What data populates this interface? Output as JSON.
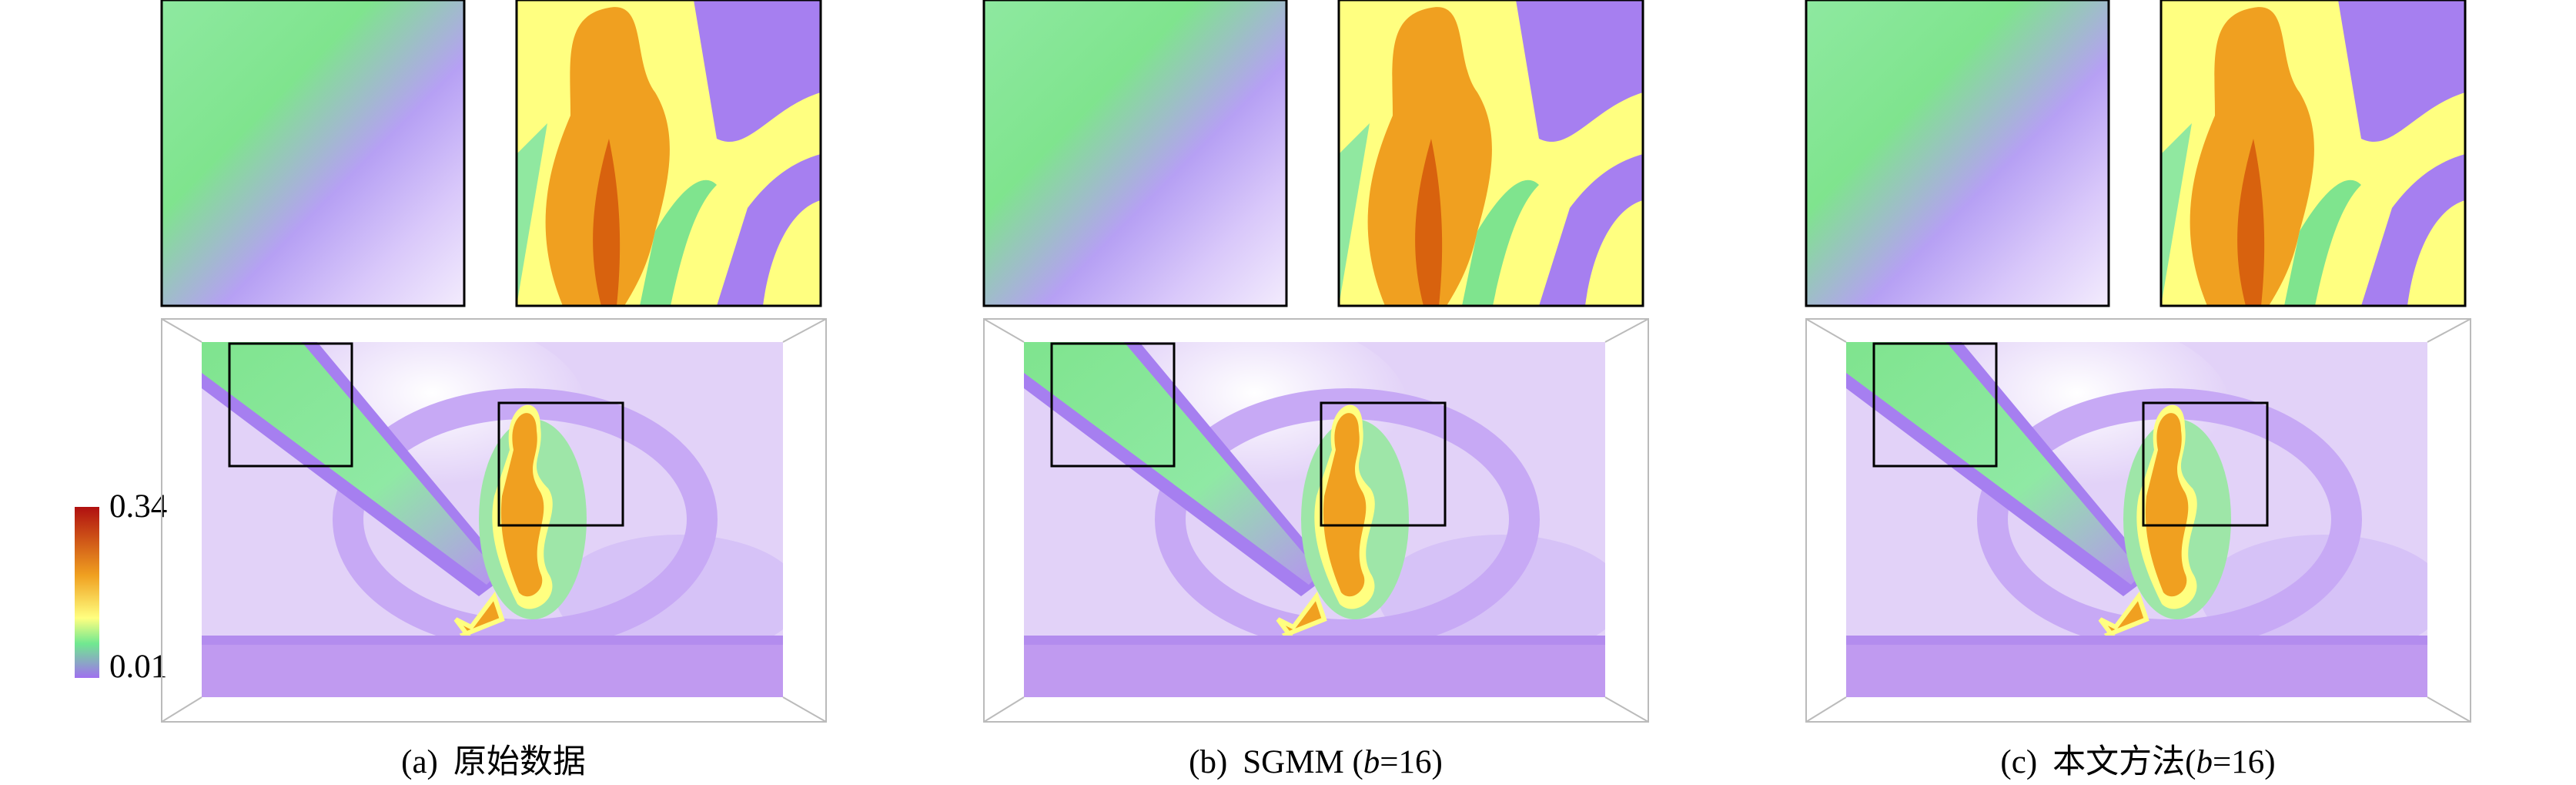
{
  "colorbar": {
    "ticks": [
      0.01,
      0.34
    ]
  },
  "panels": [
    {
      "label": "(a)",
      "caption": [
        "原始数据"
      ]
    },
    {
      "label": "(b)",
      "caption": [
        "SGMM (",
        "b",
        "=16)"
      ]
    },
    {
      "label": "(c)",
      "caption": [
        "本文方法(",
        "b",
        "=16)"
      ]
    }
  ]
}
